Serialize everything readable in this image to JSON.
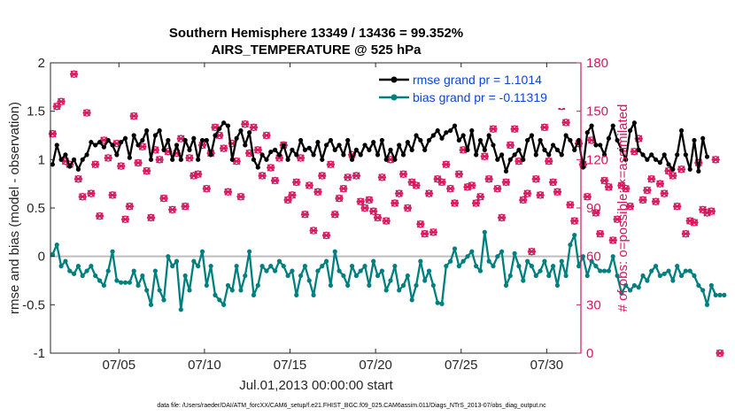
{
  "chart_data": {
    "type": "line",
    "title": [
      "Southern Hemisphere 13349 / 13436 = 99.352%",
      "AIRS_TEMPERATURE @ 525 hPa"
    ],
    "xlabel": "Jul.01,2013 00:00:00 start",
    "ylabel": "rmse and bias (model - observation)",
    "y2label": "# of obs: o=possible; ×=assimilated",
    "xlim": [
      1,
      32
    ],
    "ylim": [
      -1,
      2
    ],
    "y2lim": [
      0,
      180
    ],
    "x_ticks": [
      {
        "value": 5,
        "label": "07/05"
      },
      {
        "value": 10,
        "label": "07/10"
      },
      {
        "value": 15,
        "label": "07/15"
      },
      {
        "value": 20,
        "label": "07/20"
      },
      {
        "value": 25,
        "label": "07/25"
      },
      {
        "value": 30,
        "label": "07/30"
      }
    ],
    "y_ticks": [
      {
        "value": -1,
        "label": "-1"
      },
      {
        "value": -0.5,
        "label": "-0.5"
      },
      {
        "value": 0,
        "label": "0"
      },
      {
        "value": 0.5,
        "label": "0.5"
      },
      {
        "value": 1,
        "label": "1"
      },
      {
        "value": 1.5,
        "label": "1.5"
      },
      {
        "value": 2,
        "label": "2"
      }
    ],
    "y2_ticks": [
      {
        "value": 0,
        "label": "0"
      },
      {
        "value": 30,
        "label": "30"
      },
      {
        "value": 60,
        "label": "60"
      },
      {
        "value": 90,
        "label": "90"
      },
      {
        "value": 120,
        "label": "120"
      },
      {
        "value": 150,
        "label": "150"
      },
      {
        "value": 180,
        "label": "180"
      }
    ],
    "zero_line": 0,
    "series": [
      {
        "name": "rmse grand pr = 1.1014",
        "color": "#000000",
        "axis": "left",
        "x_start": 1.125,
        "x_step": 0.25,
        "values": [
          0.95,
          1.15,
          1.0,
          1.05,
          0.93,
          1.0,
          0.9,
          1.0,
          1.05,
          1.18,
          1.15,
          1.18,
          1.13,
          1.2,
          1.15,
          1.05,
          1.18,
          1.22,
          1.02,
          1.25,
          1.15,
          1.2,
          1.3,
          1.0,
          1.25,
          1.3,
          1.1,
          1.2,
          1.0,
          1.15,
          1.0,
          1.2,
          1.1,
          1.22,
          1.0,
          1.2,
          1.2,
          1.05,
          1.25,
          1.32,
          1.38,
          1.35,
          1.0,
          1.22,
          1.3,
          1.15,
          1.28,
          1.0,
          0.92,
          1.05,
          1.0,
          1.08,
          1.1,
          1.05,
          1.15,
          1.0,
          1.1,
          1.05,
          1.2,
          1.1,
          1.12,
          1.05,
          1.18,
          1.0,
          1.15,
          1.2,
          1.1,
          1.15,
          1.05,
          1.2,
          1.0,
          1.1,
          1.05,
          1.15,
          1.1,
          1.18,
          1.05,
          1.2,
          1.0,
          1.1,
          1.0,
          1.15,
          1.05,
          1.18,
          1.1,
          1.25,
          1.2,
          1.1,
          1.2,
          1.25,
          1.3,
          1.22,
          1.28,
          1.3,
          1.35,
          1.2,
          1.25,
          1.1,
          1.3,
          1.05,
          1.2,
          1.1,
          1.25,
          1.15,
          1.0,
          1.05,
          0.88,
          1.0,
          1.05,
          1.1,
          1.0,
          1.2,
          1.25,
          1.05,
          1.2,
          1.1,
          1.05,
          1.15,
          1.1,
          1.05,
          1.25,
          1.2,
          1.1,
          1.2,
          0.92,
          1.28,
          1.35,
          1.15,
          1.15,
          1.05,
          1.22,
          1.35,
          1.2,
          1.1,
          1.0,
          1.3,
          1.38,
          1.1,
          1.05,
          1.0,
          1.05,
          1.0,
          0.97,
          1.05,
          0.95,
          0.9,
          1.05,
          1.3,
          1.05,
          0.9,
          1.2,
          0.88,
          1.22,
          1.03
        ]
      },
      {
        "name": "bias grand pr = -0.11319",
        "color": "#007f7f",
        "axis": "left",
        "x_start": 1.125,
        "x_step": 0.25,
        "values": [
          0.02,
          0.12,
          -0.1,
          -0.05,
          -0.15,
          -0.18,
          -0.1,
          -0.2,
          -0.15,
          -0.1,
          -0.2,
          -0.25,
          -0.3,
          -0.15,
          0.05,
          -0.25,
          -0.27,
          -0.27,
          -0.27,
          -0.15,
          -0.3,
          -0.2,
          -0.35,
          -0.5,
          -0.15,
          -0.35,
          -0.45,
          0.0,
          -0.1,
          -0.05,
          -0.55,
          -0.2,
          -0.35,
          -0.05,
          -0.1,
          0.05,
          -0.3,
          -0.1,
          -0.4,
          -0.45,
          -0.5,
          -0.3,
          -0.35,
          -0.1,
          -0.35,
          -0.2,
          0.05,
          -0.4,
          -0.3,
          -0.1,
          -0.15,
          -0.1,
          -0.15,
          -0.05,
          -0.1,
          -0.2,
          -0.15,
          -0.4,
          -0.2,
          -0.1,
          -0.25,
          -0.4,
          -0.15,
          -0.1,
          -0.05,
          -0.3,
          0.05,
          -0.15,
          -0.2,
          -0.3,
          -0.1,
          -0.2,
          -0.15,
          -0.1,
          -0.3,
          -0.05,
          -0.2,
          -0.15,
          -0.35,
          -0.25,
          -0.1,
          -0.35,
          -0.3,
          -0.2,
          -0.45,
          -0.3,
          -0.05,
          -0.25,
          -0.15,
          -0.3,
          -0.48,
          -0.49,
          -0.1,
          -0.05,
          0.08,
          -0.1,
          -0.05,
          0.0,
          0.05,
          -0.1,
          -0.15,
          0.25,
          -0.05,
          -0.1,
          0.0,
          0.05,
          -0.3,
          -0.2,
          0.03,
          -0.1,
          -0.25,
          -0.05,
          -0.1,
          -0.2,
          -0.15,
          -0.05,
          -0.2,
          -0.1,
          -0.3,
          -0.05,
          -0.2,
          0.12,
          0.22,
          -0.1,
          0.0,
          -0.2,
          -0.05,
          -0.1,
          -0.15,
          -0.15,
          -0.15,
          0.0,
          -0.2,
          -0.38,
          -0.3,
          -0.35,
          -0.3,
          -0.32,
          -0.2,
          -0.25,
          -0.15,
          -0.1,
          -0.2,
          -0.18,
          -0.15,
          -0.25,
          -0.1,
          -0.2,
          -0.15,
          -0.15,
          -0.2,
          -0.3,
          -0.35,
          -0.5,
          -0.3,
          -0.4,
          -0.4,
          -0.4
        ]
      },
      {
        "name": "obs possible (o)",
        "color": "#d6165e",
        "axis": "right",
        "marker": "circle",
        "x_start": 1.125,
        "x_step": 0.25,
        "values": [
          136,
          153,
          156,
          119,
          117,
          173,
          108,
          97,
          149,
          99,
          117,
          85,
          132,
          121,
          98,
          130,
          116,
          83,
          91,
          147,
          118,
          128,
          113,
          84,
          126,
          120,
          96,
          125,
          89,
          124,
          133,
          91,
          121,
          110,
          111,
          129,
          102,
          124,
          140,
          135,
          127,
          100,
          130,
          119,
          97,
          142,
          124,
          140,
          126,
          110,
          135,
          115,
          107,
          121,
          129,
          95,
          98,
          106,
          121,
          86,
          104,
          76,
          100,
          110,
          73,
          117,
          86,
          96,
          102,
          109,
          123,
          110,
          94,
          90,
          95,
          88,
          84,
          109,
          82,
          120,
          93,
          99,
          111,
          90,
          106,
          104,
          80,
          74,
          99,
          75,
          108,
          106,
          117,
          102,
          93,
          111,
          126,
          103,
          104,
          93,
          97,
          122,
          108,
          139,
          102,
          84,
          106,
          129,
          139,
          119,
          95,
          99,
          63,
          108,
          98,
          140,
          119,
          106,
          100,
          153,
          143,
          92,
          82,
          130,
          117,
          97,
          132,
          87,
          74,
          107,
          103,
          70,
          83,
          104,
          102,
          91,
          125,
          133,
          95,
          101,
          108,
          94,
          105,
          99,
          113,
          110,
          91,
          114,
          74,
          82,
          81,
          118,
          89,
          87,
          88,
          120,
          0
        ]
      },
      {
        "name": "obs assimilated (×)",
        "color": "#d6165e",
        "axis": "right",
        "marker": "x",
        "x_start": 1.125,
        "x_step": 0.25,
        "values": [
          136,
          153,
          156,
          119,
          117,
          173,
          108,
          97,
          149,
          99,
          117,
          85,
          132,
          121,
          98,
          130,
          116,
          83,
          91,
          147,
          118,
          128,
          113,
          84,
          126,
          120,
          96,
          125,
          89,
          124,
          133,
          91,
          121,
          110,
          111,
          129,
          102,
          124,
          140,
          135,
          127,
          100,
          130,
          119,
          97,
          142,
          124,
          140,
          126,
          110,
          135,
          115,
          107,
          121,
          129,
          95,
          98,
          106,
          121,
          86,
          104,
          76,
          100,
          110,
          73,
          117,
          86,
          96,
          102,
          109,
          123,
          110,
          94,
          90,
          95,
          88,
          84,
          109,
          82,
          120,
          93,
          99,
          111,
          90,
          106,
          104,
          80,
          74,
          99,
          75,
          108,
          106,
          117,
          102,
          93,
          111,
          126,
          103,
          104,
          93,
          97,
          122,
          108,
          139,
          102,
          84,
          106,
          129,
          139,
          119,
          95,
          99,
          63,
          108,
          98,
          140,
          119,
          106,
          100,
          153,
          143,
          92,
          82,
          130,
          117,
          97,
          132,
          87,
          74,
          107,
          103,
          70,
          83,
          104,
          102,
          91,
          125,
          133,
          95,
          101,
          108,
          94,
          105,
          99,
          113,
          110,
          91,
          114,
          74,
          82,
          81,
          118,
          89,
          87,
          88,
          120,
          0
        ]
      }
    ],
    "legend": {
      "placement": "top-right",
      "entries": [
        "rmse grand pr = 1.1014",
        "bias grand pr = -0.11319"
      ]
    },
    "footnote": "data file: /Users/raeder/DAI/ATM_forcXX/CAM6_setup/f.e21.FHIST_BGC.f09_025.CAM6assim.011/Diags_NTrS_2013-07/obs_diag_output.nc"
  },
  "colors": {
    "rmse": "#000000",
    "bias": "#007f7f",
    "obs": "#d6165e",
    "zero_line": "#bdbdbd"
  }
}
